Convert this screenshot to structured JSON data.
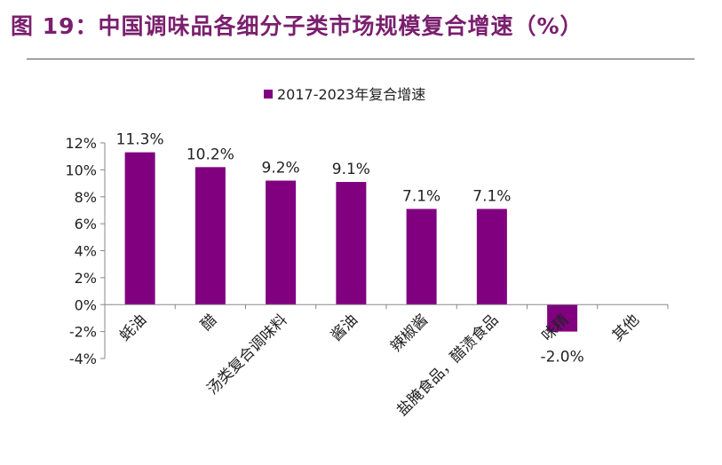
{
  "figure": {
    "title": "图 19：中国调味品各细分子类市场规模复合增速（%）"
  },
  "chart_data": {
    "type": "bar",
    "title": "",
    "xlabel": "",
    "ylabel": "",
    "legend": {
      "label": "2017-2023年复合增速",
      "position": "top-center"
    },
    "categories": [
      "蚝油",
      "醋",
      "汤类复合调味料",
      "酱油",
      "辣椒酱",
      "盐腌食品，醋渍食品",
      "味精",
      "其他"
    ],
    "series": [
      {
        "name": "2017-2023年复合增速",
        "values": [
          11.3,
          10.2,
          9.2,
          9.1,
          7.1,
          7.1,
          -2.0,
          null
        ]
      }
    ],
    "data_labels": [
      "11.3%",
      "10.2%",
      "9.2%",
      "9.1%",
      "7.1%",
      "7.1%",
      "-2.0%",
      ""
    ],
    "ylim": [
      -4,
      12
    ],
    "yticks": [
      "12%",
      "10%",
      "8%",
      "6%",
      "4%",
      "2%",
      "0%",
      "-2%",
      "-4%"
    ],
    "ytick_values": [
      12,
      10,
      8,
      6,
      4,
      2,
      0,
      -2,
      -4
    ],
    "grid": false,
    "colors": {
      "bar": "#800080",
      "axis": "#888888",
      "title": "#7a1f6e"
    }
  }
}
